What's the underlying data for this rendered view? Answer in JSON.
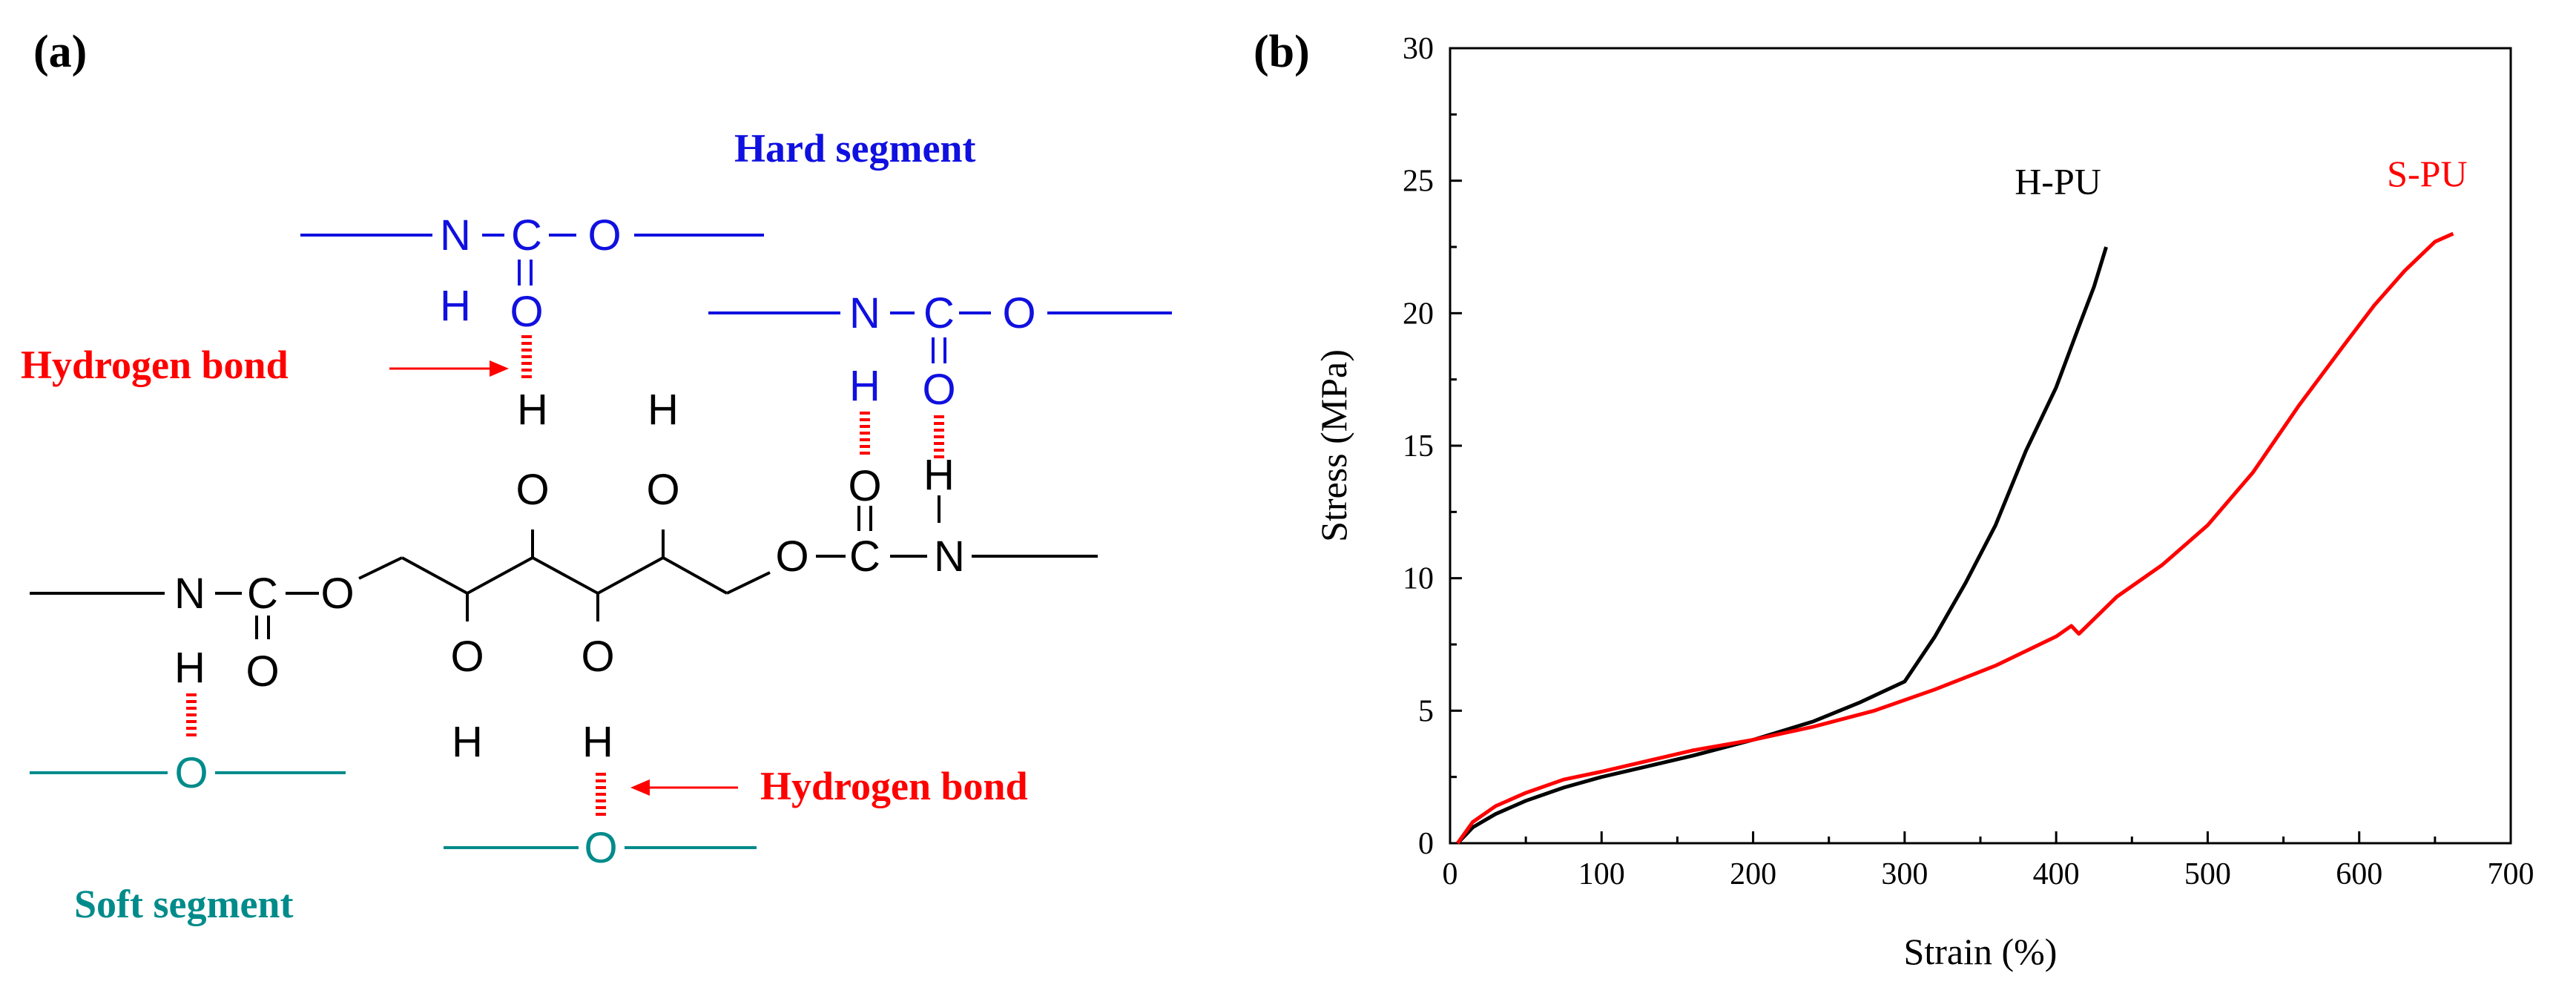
{
  "panel_a": {
    "label": "(a)",
    "hard_segment_label": "Hard segment",
    "soft_segment_label": "Soft segment",
    "hbond_label_1": "Hydrogen bond",
    "hbond_label_2": "Hydrogen bond",
    "atoms": {
      "N": "N",
      "C": "C",
      "O": "O",
      "H": "H"
    },
    "colors": {
      "hard": "#1010e0",
      "soft": "#008b8b",
      "hbond": "#ff0000",
      "backbone": "#000000"
    }
  },
  "panel_b": {
    "label": "(b)"
  },
  "chart_data": {
    "type": "line",
    "xlabel": "Strain (%)",
    "ylabel": "Stress (MPa)",
    "xlim": [
      0,
      700
    ],
    "ylim": [
      0,
      30
    ],
    "xticks": [
      0,
      100,
      200,
      300,
      400,
      500,
      600,
      700
    ],
    "yticks": [
      0,
      5,
      10,
      15,
      20,
      25,
      30
    ],
    "grid": false,
    "series": [
      {
        "name": "H-PU",
        "color": "#000000",
        "x": [
          5,
          15,
          30,
          50,
          75,
          100,
          130,
          160,
          200,
          240,
          270,
          300,
          320,
          340,
          360,
          380,
          400,
          415,
          425,
          433
        ],
        "y": [
          0,
          0.6,
          1.1,
          1.6,
          2.1,
          2.5,
          2.9,
          3.3,
          3.9,
          4.6,
          5.3,
          6.1,
          7.8,
          9.8,
          12.0,
          14.8,
          17.2,
          19.5,
          21.0,
          22.5
        ]
      },
      {
        "name": "S-PU",
        "color": "#ff0000",
        "x": [
          5,
          15,
          30,
          50,
          75,
          100,
          130,
          160,
          200,
          240,
          280,
          320,
          360,
          400,
          410,
          415,
          440,
          470,
          500,
          530,
          560,
          590,
          610,
          630,
          650,
          662
        ],
        "y": [
          0,
          0.8,
          1.4,
          1.9,
          2.4,
          2.7,
          3.1,
          3.5,
          3.9,
          4.4,
          5.0,
          5.8,
          6.7,
          7.8,
          8.2,
          7.9,
          9.3,
          10.5,
          12.0,
          14.0,
          16.5,
          18.8,
          20.3,
          21.6,
          22.7,
          23.0
        ]
      }
    ]
  }
}
